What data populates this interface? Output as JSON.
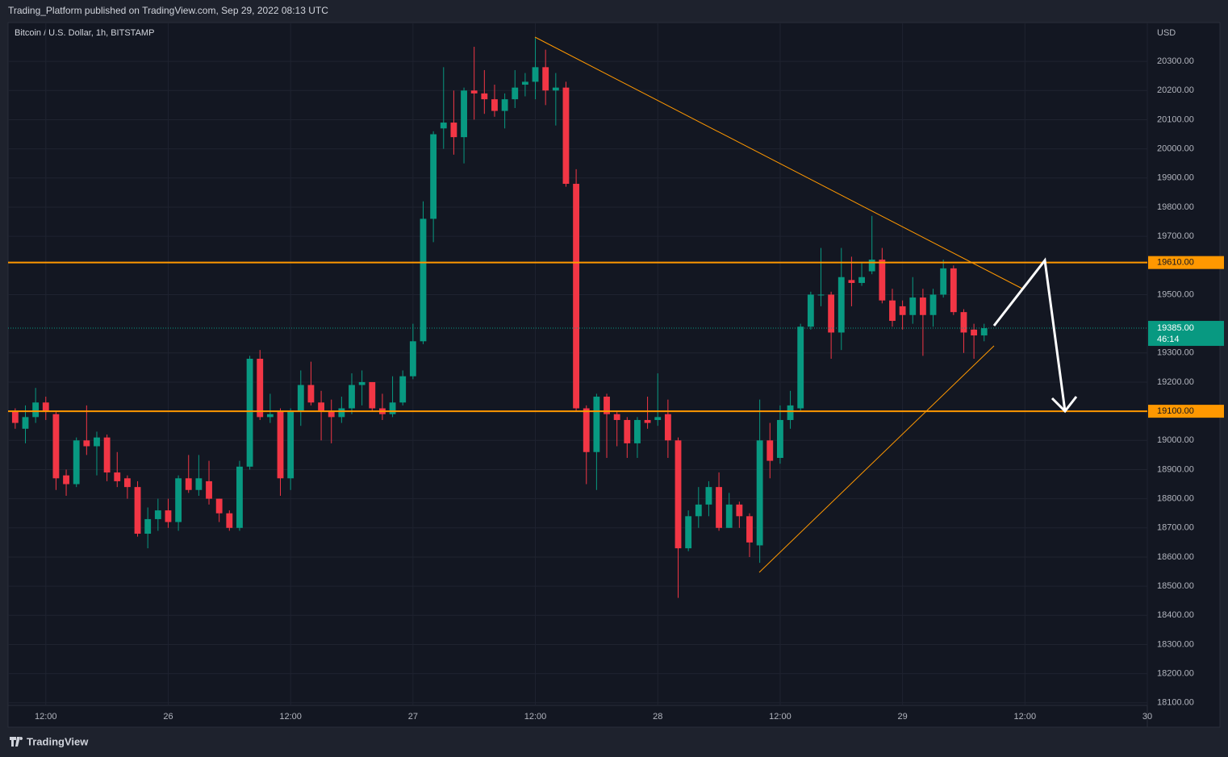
{
  "header": {
    "published": "Trading_Platform published on TradingView.com, Sep 29, 2022 08:13 UTC",
    "symbol": "Bitcoin / U.S. Dollar, 1h, BITSTAMP",
    "currency": "USD",
    "brand": "TradingView"
  },
  "chart_data": {
    "type": "candlestick",
    "x": [
      -15,
      -14,
      -13,
      -12,
      -11,
      -10,
      -9,
      -8,
      -7,
      -6,
      -5,
      -4,
      -3,
      -2,
      -1,
      0,
      1,
      2,
      3,
      4,
      5,
      6,
      7,
      8,
      9,
      10,
      11,
      12,
      13,
      14,
      15,
      16,
      17,
      18,
      19,
      20,
      21,
      22,
      23,
      24,
      25,
      26,
      27,
      28,
      29,
      30,
      31,
      32,
      33,
      34,
      35,
      36,
      37,
      38,
      39,
      40,
      41,
      42,
      43,
      44,
      45,
      46,
      47,
      48,
      49,
      50,
      51,
      52,
      53,
      54,
      55,
      56,
      57,
      58,
      59,
      60,
      61,
      62,
      63,
      64,
      65,
      66,
      67,
      68,
      69,
      70,
      71,
      72,
      73,
      74,
      75,
      76,
      77,
      78,
      79,
      80
    ],
    "open": [
      19100,
      19040,
      19080,
      19130,
      19090,
      18880,
      18850,
      19000,
      18980,
      19010,
      18890,
      18870,
      18840,
      18680,
      18730,
      18760,
      18720,
      18870,
      18830,
      18860,
      18800,
      18750,
      18700,
      18910,
      19280,
      19080,
      19100,
      18870,
      19100,
      19190,
      19130,
      19100,
      19080,
      19110,
      19190,
      19200,
      19110,
      19090,
      19130,
      19220,
      19340,
      19760,
      20070,
      20090,
      20040,
      20200,
      20190,
      20170,
      20130,
      20170,
      20220,
      20230,
      20280,
      20200,
      20210,
      19880,
      19110,
      18960,
      19150,
      19090,
      19070,
      18990,
      19070,
      19070,
      19090,
      19000,
      18630,
      18740,
      18780,
      18840,
      18700,
      18780,
      18740,
      18640,
      19000,
      18940,
      19070,
      19110,
      19390,
      19500,
      19500,
      19370,
      19550,
      19540,
      19580,
      19620,
      19480,
      19460,
      19430,
      19490,
      19430,
      19500,
      19590,
      19440,
      19380,
      19360
    ],
    "high": [
      19110,
      19120,
      19180,
      19150,
      19100,
      18900,
      19010,
      19120,
      19030,
      19020,
      18960,
      18880,
      18860,
      18770,
      18800,
      18800,
      18880,
      18950,
      18950,
      18930,
      18800,
      18760,
      18930,
      19290,
      19310,
      19160,
      19110,
      19110,
      19240,
      19270,
      19170,
      19140,
      19150,
      19230,
      19240,
      19200,
      19160,
      19220,
      19240,
      19400,
      19820,
      20060,
      20280,
      20200,
      20210,
      20350,
      20270,
      20220,
      20190,
      20270,
      20260,
      20380,
      20340,
      20260,
      20230,
      19930,
      19120,
      19160,
      19160,
      19100,
      19080,
      19080,
      19150,
      19230,
      19140,
      19010,
      18760,
      18840,
      18860,
      18890,
      18820,
      18790,
      18750,
      19140,
      19060,
      19120,
      19170,
      19400,
      19510,
      19660,
      19510,
      19660,
      19630,
      19610,
      19770,
      19660,
      19520,
      19480,
      19560,
      19520,
      19520,
      19620,
      19600,
      19450,
      19400,
      19400
    ],
    "low": [
      19040,
      18990,
      19060,
      19070,
      18830,
      18810,
      18840,
      18950,
      18880,
      18860,
      18840,
      18800,
      18670,
      18630,
      18690,
      18700,
      18690,
      18820,
      18810,
      18780,
      18720,
      18690,
      18690,
      18900,
      19070,
      19060,
      18810,
      18830,
      19050,
      19120,
      19000,
      18990,
      19060,
      19090,
      19120,
      19100,
      19070,
      19080,
      19120,
      19210,
      19330,
      19680,
      20000,
      19980,
      19950,
      20100,
      20120,
      20110,
      20070,
      20140,
      20180,
      20170,
      20150,
      20080,
      19870,
      19100,
      18850,
      18830,
      18940,
      18980,
      18940,
      18940,
      19040,
      19050,
      18940,
      18460,
      18620,
      18700,
      18740,
      18690,
      18700,
      18700,
      18600,
      18580,
      18870,
      18920,
      19040,
      19100,
      19380,
      19460,
      19280,
      19310,
      19460,
      19530,
      19570,
      19470,
      19390,
      19380,
      19400,
      19290,
      19390,
      19490,
      19430,
      19300,
      19280,
      19340
    ],
    "close": [
      19060,
      19080,
      19130,
      19100,
      18870,
      18850,
      19000,
      18980,
      19010,
      18890,
      18860,
      18840,
      18680,
      18730,
      18760,
      18720,
      18870,
      18830,
      18870,
      18800,
      18750,
      18700,
      18910,
      19280,
      19080,
      19090,
      18870,
      19100,
      19190,
      19130,
      19100,
      19080,
      19110,
      19190,
      19200,
      19110,
      19090,
      19130,
      19220,
      19340,
      19760,
      20050,
      20090,
      20040,
      20200,
      20190,
      20170,
      20130,
      20170,
      20210,
      20230,
      20280,
      20200,
      20210,
      19880,
      19110,
      18960,
      19150,
      19090,
      19070,
      18990,
      19070,
      19060,
      19080,
      19000,
      18630,
      18740,
      18780,
      18840,
      18700,
      18780,
      18740,
      18650,
      19000,
      18930,
      19070,
      19120,
      19390,
      19500,
      19500,
      19370,
      19560,
      19540,
      19560,
      19620,
      19480,
      19410,
      19430,
      19490,
      19430,
      19500,
      19590,
      19440,
      19370,
      19360,
      19385
    ],
    "up_color": "#089981",
    "down_color": "#f23645",
    "xlim": [
      -15.7,
      96
    ],
    "xticks": [
      {
        "value": -12,
        "label": "12:00"
      },
      {
        "value": 0,
        "label": "26"
      },
      {
        "value": 12,
        "label": "12:00"
      },
      {
        "value": 24,
        "label": "27"
      },
      {
        "value": 36,
        "label": "12:00"
      },
      {
        "value": 48,
        "label": "28"
      },
      {
        "value": 60,
        "label": "12:00"
      },
      {
        "value": 72,
        "label": "29"
      },
      {
        "value": 84,
        "label": "12:00"
      },
      {
        "value": 96,
        "label": "30"
      }
    ],
    "ylim": [
      18022,
      20433
    ],
    "yticks": [
      {
        "value": 20300,
        "label": "20300.00"
      },
      {
        "value": 20200,
        "label": "20200.00"
      },
      {
        "value": 20100,
        "label": "20100.00"
      },
      {
        "value": 20000,
        "label": "20000.00"
      },
      {
        "value": 19900,
        "label": "19900.00"
      },
      {
        "value": 19800,
        "label": "19800.00"
      },
      {
        "value": 19700,
        "label": "19700.00"
      },
      {
        "value": 19500,
        "label": "19500.00"
      },
      {
        "value": 19300,
        "label": "19300.00"
      },
      {
        "value": 19200,
        "label": "19200.00"
      },
      {
        "value": 19000,
        "label": "19000.00"
      },
      {
        "value": 18900,
        "label": "18900.00"
      },
      {
        "value": 18800,
        "label": "18800.00"
      },
      {
        "value": 18700,
        "label": "18700.00"
      },
      {
        "value": 18600,
        "label": "18600.00"
      },
      {
        "value": 18500,
        "label": "18500.00"
      },
      {
        "value": 18400,
        "label": "18400.00"
      },
      {
        "value": 18300,
        "label": "18300.00"
      },
      {
        "value": 18200,
        "label": "18200.00"
      },
      {
        "value": 18100,
        "label": "18100.00"
      }
    ],
    "grid": true,
    "levels": [
      {
        "value": 19610,
        "label": "19610.00",
        "color": "#ff9800"
      },
      {
        "value": 19100,
        "label": "19100.00",
        "color": "#ff9800"
      }
    ],
    "last_price": {
      "value": 19385,
      "label": "19385.00",
      "countdown": "46:14",
      "color": "#089981"
    }
  }
}
